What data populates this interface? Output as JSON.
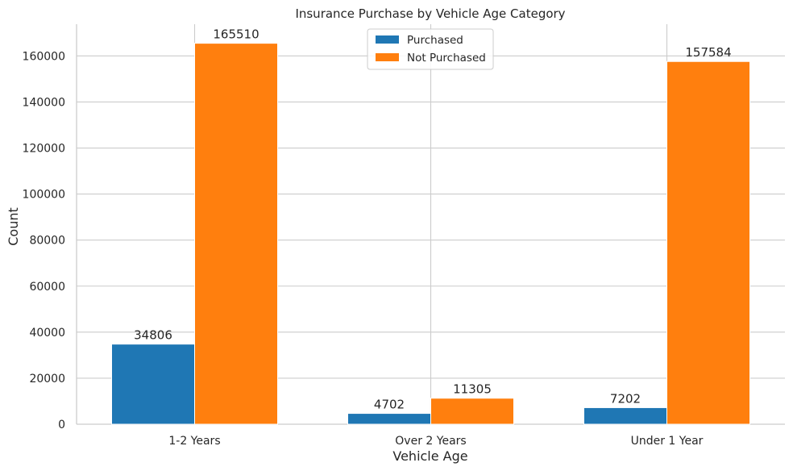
{
  "chart_data": {
    "type": "bar",
    "title": "Insurance Purchase by Vehicle Age Category",
    "xlabel": "Vehicle Age",
    "ylabel": "Count",
    "categories": [
      "1-2 Years",
      "Over 2 Years",
      "Under 1 Year"
    ],
    "series": [
      {
        "name": "Purchased",
        "values": [
          34806,
          4702,
          7202
        ],
        "color": "#1f77b4"
      },
      {
        "name": "Not Purchased",
        "values": [
          165510,
          11305,
          157584
        ],
        "color": "#ff7f0e"
      }
    ],
    "ylim": [
      0,
      173788
    ],
    "yticks": [
      "0",
      "20000",
      "40000",
      "60000",
      "80000",
      "100000",
      "120000",
      "140000",
      "160000"
    ],
    "grid": true,
    "legend_position": "top-center"
  }
}
